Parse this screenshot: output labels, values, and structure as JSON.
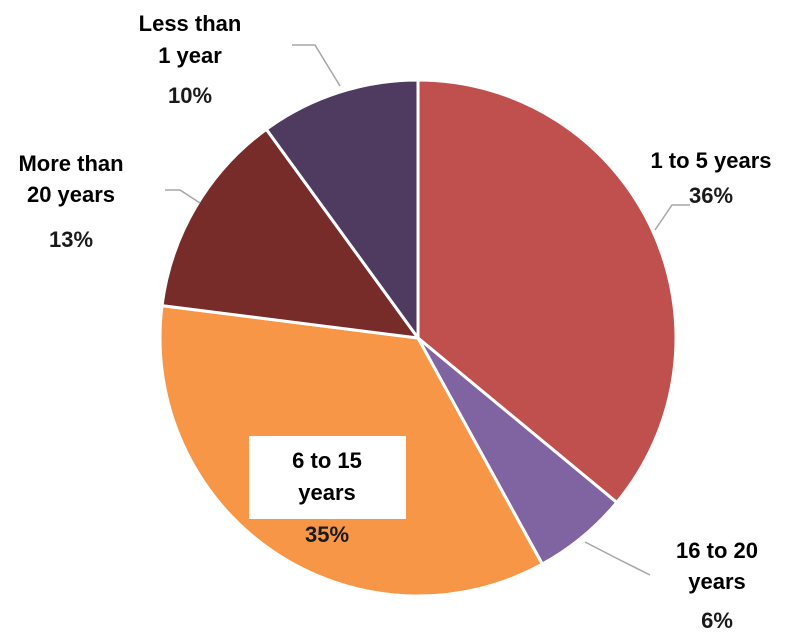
{
  "chart_data": {
    "type": "pie",
    "title": "",
    "slices": [
      {
        "label": [
          "1 to 5 years"
        ],
        "percent_label": "36%",
        "value": 36,
        "color": "#c0504d"
      },
      {
        "label": [
          "16 to 20",
          "years"
        ],
        "percent_label": "6%",
        "value": 6,
        "color": "#8064a2"
      },
      {
        "label": [
          "6 to 15",
          "years"
        ],
        "percent_label": "35%",
        "value": 35,
        "color": "#f79646"
      },
      {
        "label": [
          "More than",
          "20 years"
        ],
        "percent_label": "13%",
        "value": 13,
        "color": "#772c2a"
      },
      {
        "label": [
          "Less than",
          "1 year"
        ],
        "percent_label": "10%",
        "value": 10,
        "color": "#4f3a60"
      }
    ],
    "start_angle": "12 o'clock",
    "direction": "clockwise",
    "legend": "none"
  }
}
